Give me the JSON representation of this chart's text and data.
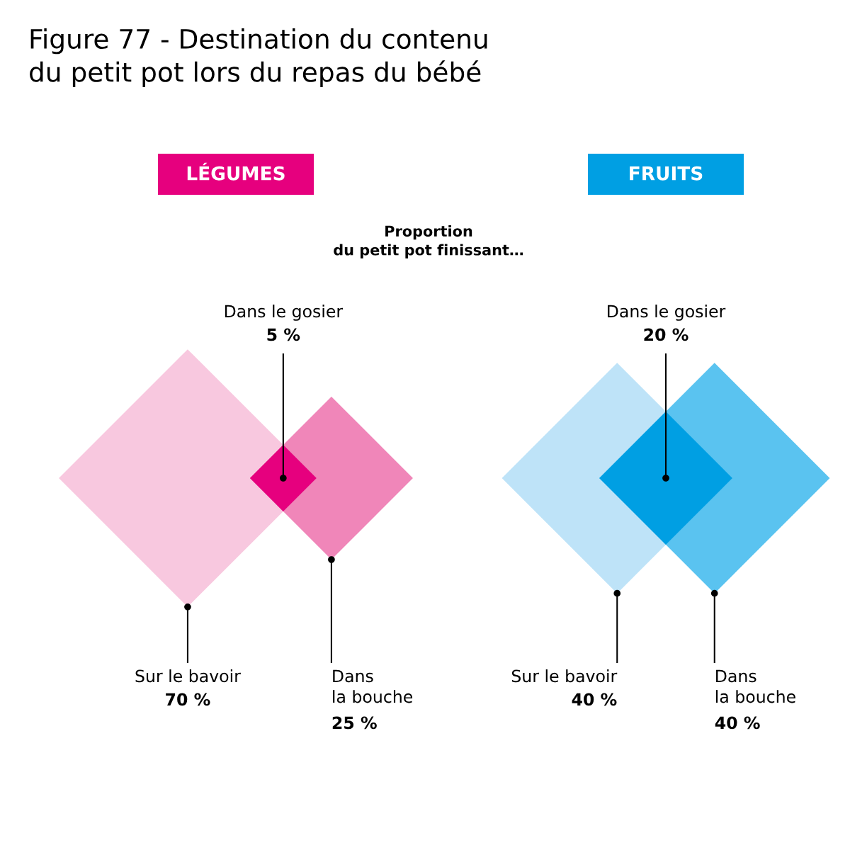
{
  "chart_data": {
    "type": "other",
    "title": "Figure 77 - Destination du contenu\ndu petit pot lors du repas du bébé",
    "subtitle": "Proportion\ndu petit pot finissant…",
    "categories": [
      "Sur le bavoir",
      "Dans le gosier",
      "Dans\nla bouche"
    ],
    "series": [
      {
        "name": "LÉGUMES",
        "values": [
          70,
          5,
          25
        ],
        "colors": [
          "#f8c8df",
          "#e6007e",
          "#f086b9"
        ],
        "value_labels": [
          "70 %",
          "5 %",
          "25 %"
        ]
      },
      {
        "name": "FRUITS",
        "values": [
          40,
          20,
          40
        ],
        "colors": [
          "#bee3f8",
          "#009fe3",
          "#5ac3f0"
        ],
        "value_labels": [
          "40 %",
          "20 %",
          "40 %"
        ]
      }
    ]
  }
}
